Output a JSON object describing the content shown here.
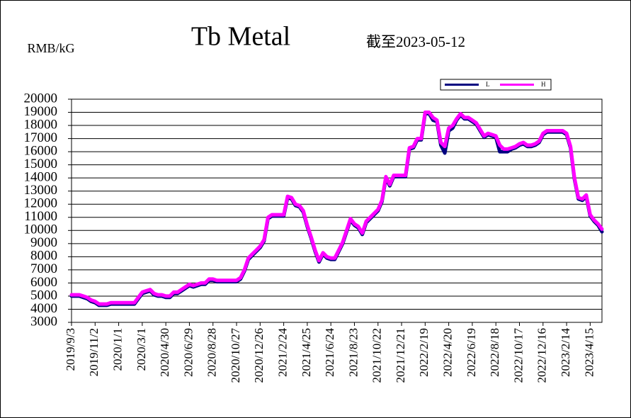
{
  "chart_data": {
    "type": "line",
    "title": "Tb Metal",
    "subtitle": "截至2023-05-12",
    "y_label": "RMB/kG",
    "categories": [
      "2019/9/3",
      null,
      null,
      null,
      null,
      null,
      "2019/11/2",
      null,
      null,
      null,
      null,
      null,
      "2020/1/1",
      null,
      null,
      null,
      null,
      null,
      "2020/3/1",
      null,
      null,
      null,
      null,
      null,
      "2020/4/30",
      null,
      null,
      null,
      null,
      null,
      "2020/6/29",
      null,
      null,
      null,
      null,
      null,
      "2020/8/28",
      null,
      null,
      null,
      null,
      null,
      "2020/10/27",
      null,
      null,
      null,
      null,
      null,
      "2020/12/26",
      null,
      null,
      null,
      null,
      null,
      "2021/2/24",
      null,
      null,
      null,
      null,
      null,
      "2021/4/25",
      null,
      null,
      null,
      null,
      null,
      "2021/6/24",
      null,
      null,
      null,
      null,
      null,
      "2021/8/23",
      null,
      null,
      null,
      null,
      null,
      "2021/10/22",
      null,
      null,
      null,
      null,
      null,
      "2021/12/21",
      null,
      null,
      null,
      null,
      null,
      "2022/2/19",
      null,
      null,
      null,
      null,
      null,
      "2022/4/20",
      null,
      null,
      null,
      null,
      null,
      "2022/6/19",
      null,
      null,
      null,
      null,
      null,
      "2022/8/18",
      null,
      null,
      null,
      null,
      null,
      "2022/10/17",
      null,
      null,
      null,
      null,
      null,
      "2022/12/16",
      null,
      null,
      null,
      null,
      null,
      "2023/2/14",
      null,
      null,
      null,
      null,
      null,
      "2023/4/15",
      null,
      null,
      null
    ],
    "series": [
      {
        "name": "L",
        "color": "#000080",
        "values": [
          5000,
          5000,
          5000,
          4900,
          4800,
          4600,
          4500,
          4300,
          4300,
          4300,
          4400,
          4400,
          4400,
          4400,
          4400,
          4400,
          4400,
          4800,
          5200,
          5300,
          5400,
          5100,
          5000,
          5000,
          4900,
          4900,
          5200,
          5200,
          5400,
          5600,
          5800,
          5700,
          5800,
          5900,
          5900,
          6200,
          6200,
          6100,
          6100,
          6100,
          6100,
          6100,
          6100,
          6300,
          6900,
          7800,
          8100,
          8400,
          8700,
          9200,
          10900,
          11100,
          11100,
          11100,
          11100,
          12500,
          12400,
          11900,
          11800,
          11400,
          10300,
          9400,
          8400,
          7600,
          8200,
          7900,
          7800,
          7800,
          8400,
          9000,
          9900,
          10800,
          10400,
          10200,
          9700,
          10600,
          10900,
          11200,
          11500,
          12200,
          14000,
          13400,
          14100,
          14100,
          14100,
          14100,
          16200,
          16300,
          16900,
          16900,
          18900,
          18900,
          18400,
          18300,
          16500,
          15900,
          17600,
          17800,
          18400,
          18800,
          18500,
          18500,
          18300,
          18100,
          17600,
          17100,
          17300,
          17200,
          17100,
          16000,
          16000,
          16000,
          16200,
          16300,
          16500,
          16600,
          16400,
          16400,
          16500,
          16700,
          17300,
          17500,
          17500,
          17500,
          17500,
          17500,
          17300,
          16300,
          13900,
          12400,
          12300,
          12600,
          11100,
          10700,
          10400,
          9900
        ]
      },
      {
        "name": "H",
        "color": "#ff00ff",
        "values": [
          5100,
          5100,
          5100,
          5000,
          4900,
          4700,
          4600,
          4400,
          4400,
          4400,
          4500,
          4500,
          4500,
          4500,
          4500,
          4500,
          4500,
          4900,
          5300,
          5400,
          5500,
          5200,
          5100,
          5100,
          5000,
          5000,
          5300,
          5300,
          5500,
          5700,
          5900,
          5800,
          5900,
          6000,
          6000,
          6300,
          6300,
          6200,
          6200,
          6200,
          6200,
          6200,
          6200,
          6400,
          7000,
          7900,
          8200,
          8500,
          8800,
          9300,
          11000,
          11200,
          11200,
          11200,
          11200,
          12600,
          12500,
          12000,
          11900,
          11500,
          10400,
          9500,
          8500,
          7700,
          8300,
          8000,
          7900,
          7900,
          8500,
          9100,
          10000,
          10900,
          10500,
          10300,
          9800,
          10700,
          11000,
          11300,
          11600,
          12300,
          14100,
          13500,
          14200,
          14200,
          14200,
          14200,
          16300,
          16400,
          17000,
          17000,
          19000,
          19000,
          18600,
          18400,
          16700,
          16400,
          17800,
          18000,
          18500,
          18900,
          18600,
          18600,
          18400,
          18200,
          17700,
          17200,
          17400,
          17300,
          17200,
          16500,
          16200,
          16200,
          16300,
          16400,
          16600,
          16700,
          16500,
          16500,
          16600,
          16800,
          17400,
          17600,
          17600,
          17600,
          17600,
          17600,
          17400,
          16400,
          14000,
          12500,
          12400,
          12700,
          11200,
          10800,
          10500,
          10100
        ]
      }
    ],
    "ylim": [
      3000,
      20000
    ],
    "yticks": [
      3000,
      4000,
      5000,
      6000,
      7000,
      8000,
      9000,
      10000,
      11000,
      12000,
      13000,
      14000,
      15000,
      16000,
      17000,
      18000,
      19000,
      20000
    ],
    "grid": true
  }
}
